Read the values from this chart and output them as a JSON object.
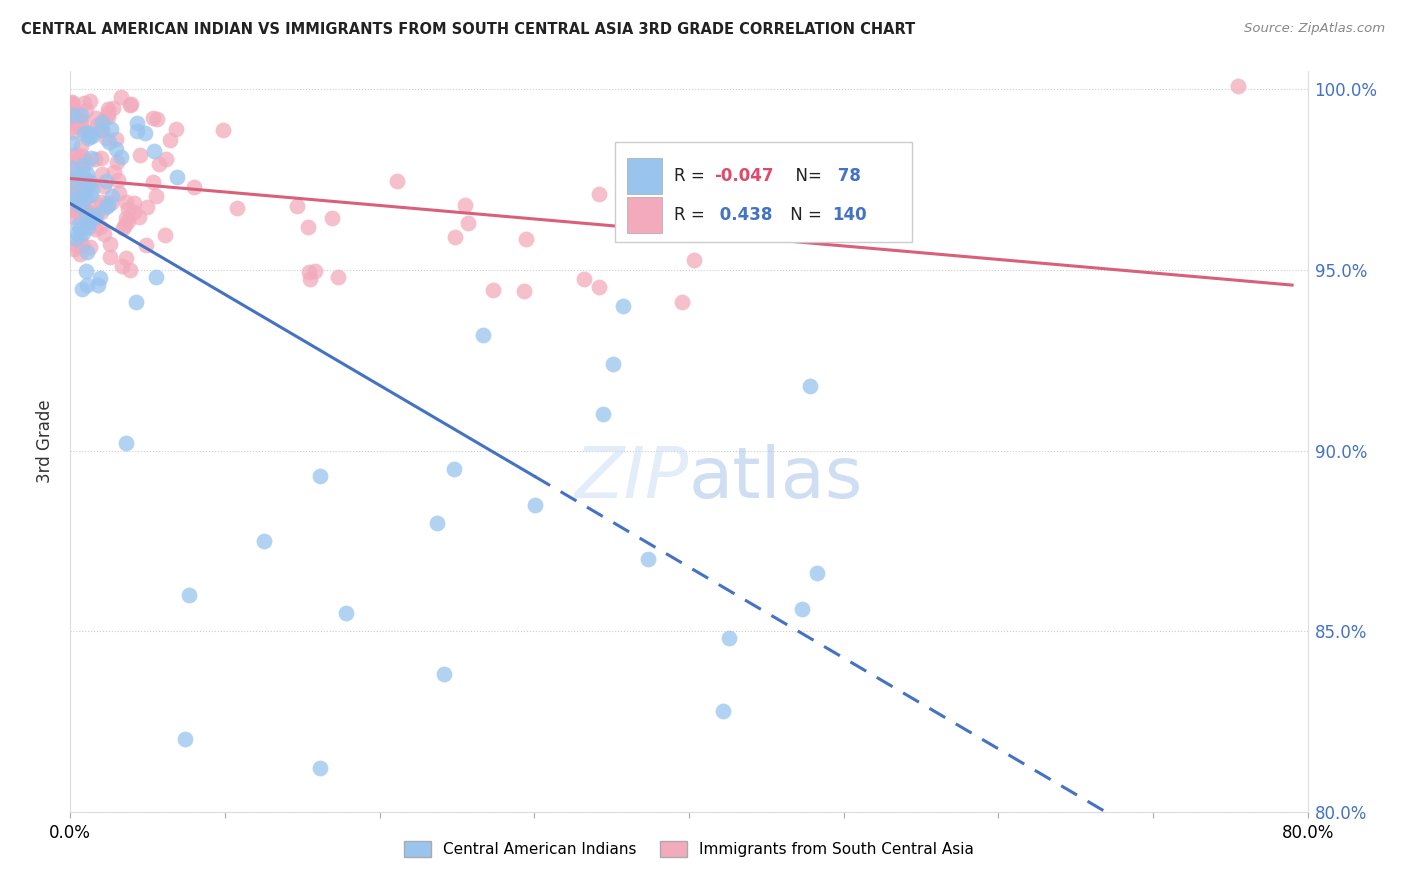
{
  "title": "CENTRAL AMERICAN INDIAN VS IMMIGRANTS FROM SOUTH CENTRAL ASIA 3RD GRADE CORRELATION CHART",
  "source": "Source: ZipAtlas.com",
  "ylabel": "3rd Grade",
  "xlim": [
    0.0,
    0.8
  ],
  "ylim": [
    0.8,
    1.005
  ],
  "x_ticks": [
    0.0,
    0.1,
    0.2,
    0.3,
    0.4,
    0.5,
    0.6,
    0.7,
    0.8
  ],
  "y_ticks": [
    0.8,
    0.85,
    0.9,
    0.95,
    1.0
  ],
  "y_tick_labels": [
    "80.0%",
    "85.0%",
    "90.0%",
    "95.0%",
    "100.0%"
  ],
  "blue_color": "#99C4EE",
  "pink_color": "#F2AABC",
  "blue_line_color": "#4472C4",
  "pink_line_color": "#D9607A",
  "legend_R_blue": "-0.047",
  "legend_N_blue": "78",
  "legend_R_pink": "0.438",
  "legend_N_pink": "140",
  "blue_r": -0.047,
  "pink_r": 0.438,
  "N_blue": 78,
  "N_pink": 140
}
